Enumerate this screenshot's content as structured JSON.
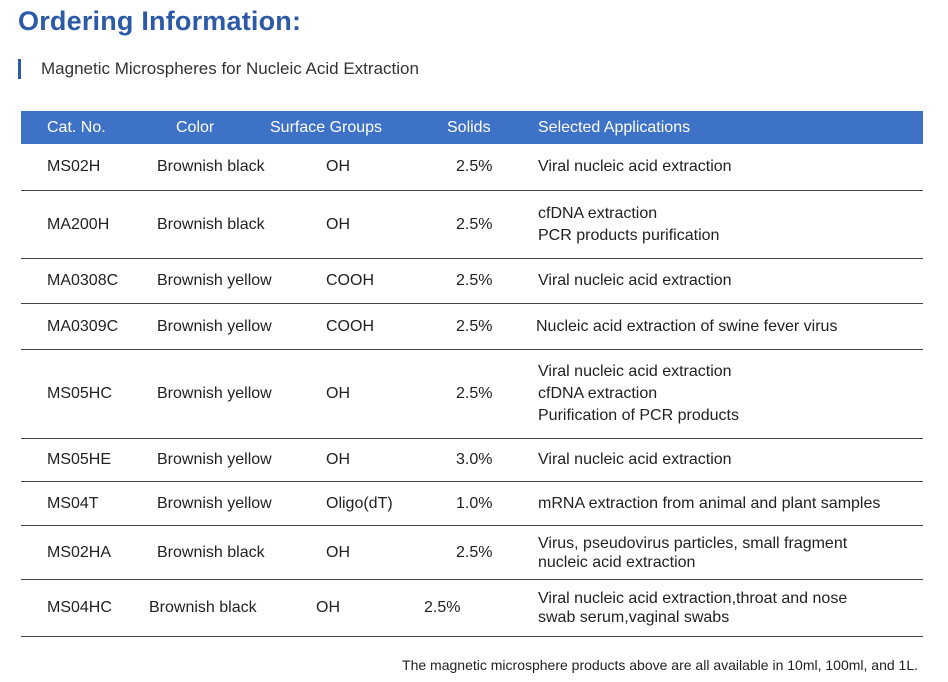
{
  "heading": "Ordering Information:",
  "subheading": "Magnetic Microspheres for Nucleic Acid Extraction",
  "table": {
    "headers": [
      "Cat. No.",
      "Color",
      "Surface Groups",
      "Solids",
      "Selected Applications"
    ],
    "rows": [
      {
        "cat": "MS02H",
        "color": "Brownish black",
        "group": "OH",
        "solids": "2.5%",
        "apps": [
          "Viral nucleic acid extraction"
        ]
      },
      {
        "cat": "MA200H",
        "color": "Brownish black",
        "group": "OH",
        "solids": "2.5%",
        "apps": [
          "cfDNA extraction",
          "PCR products purification"
        ]
      },
      {
        "cat": "MA0308C",
        "color": "Brownish yellow",
        "group": "COOH",
        "solids": "2.5%",
        "apps": [
          "Viral nucleic acid extraction"
        ]
      },
      {
        "cat": "MA0309C",
        "color": "Brownish yellow",
        "group": "COOH",
        "solids": "2.5%",
        "apps": [
          "Nucleic acid extraction of swine fever virus"
        ]
      },
      {
        "cat": "MS05HC",
        "color": "Brownish yellow",
        "group": "OH",
        "solids": "2.5%",
        "apps": [
          "Viral nucleic acid extraction",
          "cfDNA extraction",
          "Purification of PCR products"
        ]
      },
      {
        "cat": "MS05HE",
        "color": "Brownish yellow",
        "group": "OH",
        "solids": "3.0%",
        "apps": [
          "Viral nucleic acid extraction"
        ]
      },
      {
        "cat": "MS04T",
        "color": "Brownish yellow",
        "group": "Oligo(dT)",
        "solids": "1.0%",
        "apps": [
          "mRNA extraction from animal and plant samples"
        ]
      },
      {
        "cat": "MS02HA",
        "color": "Brownish black",
        "group": "OH",
        "solids": "2.5%",
        "apps": [
          "Virus, pseudovirus particles, small fragment",
          "nucleic acid extraction"
        ]
      },
      {
        "cat": "MS04HC",
        "color": "Brownish black",
        "group": "OH",
        "solids": "2.5%",
        "apps": [
          "Viral nucleic acid extraction,throat and nose",
          "swab serum,vaginal swabs"
        ]
      }
    ]
  },
  "footnote": "The magnetic microsphere products above are all available in 10ml, 100ml, and 1L."
}
